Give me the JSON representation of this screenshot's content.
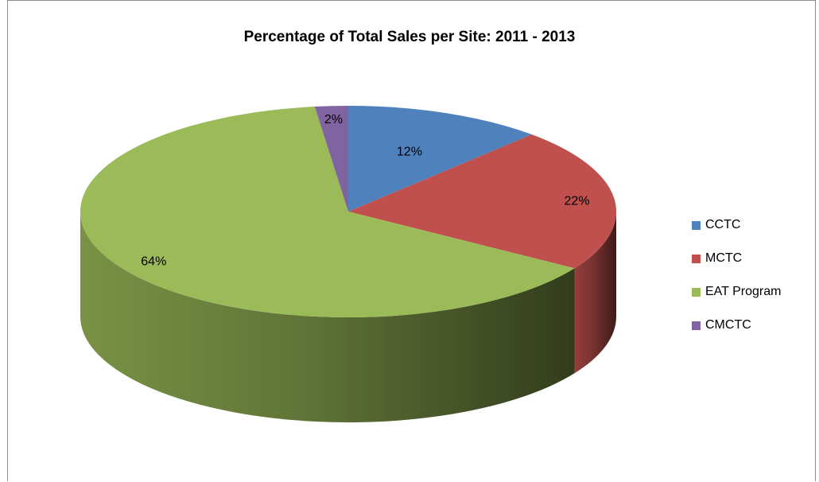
{
  "chart_data": {
    "type": "pie",
    "title": "Percentage of Total Sales per Site: 2011 - 2013",
    "three_d": true,
    "legend_position": "right",
    "categories": [
      "CCTC",
      "MCTC",
      "EAT Program",
      "CMCTC"
    ],
    "values": [
      12,
      22,
      64,
      2
    ],
    "labels": [
      "12%",
      "22%",
      "64%",
      "2%"
    ],
    "colors": [
      "#4f81bd",
      "#c0504d",
      "#9bbb59",
      "#8064a2"
    ]
  }
}
